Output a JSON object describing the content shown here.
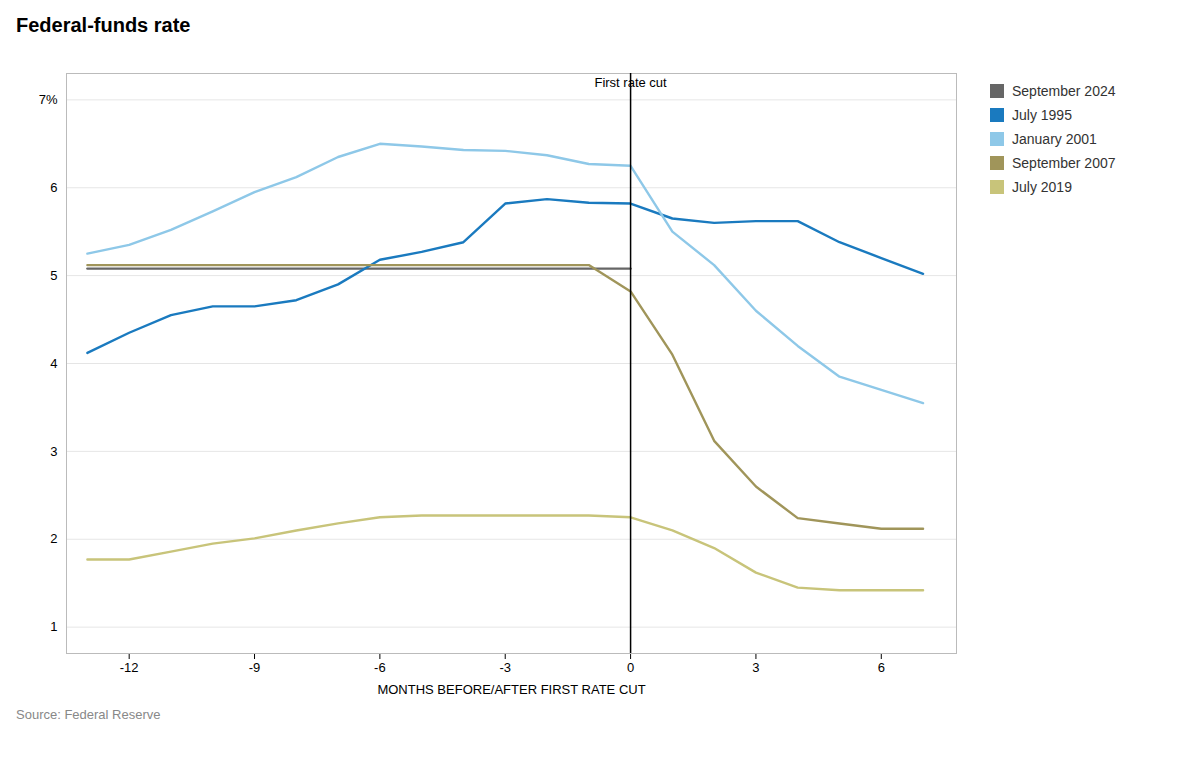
{
  "chart_data": {
    "type": "line",
    "title": "Federal-funds rate",
    "xlabel": "MONTHS BEFORE/AFTER FIRST RATE CUT",
    "caption": "Source: Federal Reserve",
    "annotations": [
      {
        "text": "First rate cut",
        "x": 0,
        "y": 7.15
      }
    ],
    "xlim": [
      -13.5,
      7.8
    ],
    "ylim": [
      0.7,
      7.3
    ],
    "xticks": [
      -12,
      -9,
      -6,
      -3,
      0,
      3,
      6
    ],
    "yticks": [
      1,
      2,
      3,
      4,
      5,
      6,
      {
        "value": 7,
        "label": "7%"
      }
    ],
    "grid": true,
    "legend": "right",
    "series": [
      {
        "name": "September 2024",
        "color": "#666666",
        "x": [
          -13,
          -12,
          -11,
          -10,
          -9,
          -8,
          -7,
          -6,
          -5,
          -4,
          -3,
          -2,
          -1,
          0
        ],
        "values": [
          5.08,
          5.08,
          5.08,
          5.08,
          5.08,
          5.08,
          5.08,
          5.08,
          5.08,
          5.08,
          5.08,
          5.08,
          5.08,
          5.08
        ]
      },
      {
        "name": "July 1995",
        "color": "#1a7abf",
        "x": [
          -13,
          -12,
          -11,
          -10,
          -9,
          -8,
          -7,
          -6,
          -5,
          -4,
          -3,
          -2,
          -1,
          0,
          1,
          2,
          3,
          4,
          5,
          6,
          7
        ],
        "values": [
          4.12,
          4.35,
          4.55,
          4.65,
          4.65,
          4.72,
          4.9,
          5.18,
          5.27,
          5.38,
          5.82,
          5.87,
          5.83,
          5.82,
          5.65,
          5.6,
          5.62,
          5.62,
          5.38,
          5.2,
          5.02
        ]
      },
      {
        "name": "January 2001",
        "color": "#8ec8e8",
        "x": [
          -13,
          -12,
          -11,
          -10,
          -9,
          -8,
          -7,
          -6,
          -5,
          -4,
          -3,
          -2,
          -1,
          0,
          1,
          2,
          3,
          4,
          5,
          6,
          7
        ],
        "values": [
          5.25,
          5.35,
          5.52,
          5.73,
          5.95,
          6.12,
          6.35,
          6.5,
          6.47,
          6.43,
          6.42,
          6.37,
          6.27,
          6.25,
          5.5,
          5.12,
          4.6,
          4.2,
          3.85,
          3.7,
          3.55
        ]
      },
      {
        "name": "September 2007",
        "color": "#a0955a",
        "x": [
          -13,
          -12,
          -11,
          -10,
          -9,
          -8,
          -7,
          -6,
          -5,
          -4,
          -3,
          -2,
          -1,
          0,
          1,
          2,
          3,
          4,
          5,
          6,
          7
        ],
        "values": [
          5.12,
          5.12,
          5.12,
          5.12,
          5.12,
          5.12,
          5.12,
          5.12,
          5.12,
          5.12,
          5.12,
          5.12,
          5.12,
          4.82,
          4.1,
          3.12,
          2.6,
          2.24,
          2.18,
          2.12,
          2.12
        ]
      },
      {
        "name": "July 2019",
        "color": "#c8c47a",
        "x": [
          -13,
          -12,
          -11,
          -10,
          -9,
          -8,
          -7,
          -6,
          -5,
          -4,
          -3,
          -2,
          -1,
          0,
          1,
          2,
          3,
          4,
          5,
          6,
          7
        ],
        "values": [
          1.77,
          1.77,
          1.86,
          1.95,
          2.01,
          2.1,
          2.18,
          2.25,
          2.27,
          2.27,
          2.27,
          2.27,
          2.27,
          2.25,
          2.1,
          1.9,
          1.62,
          1.45,
          1.42,
          1.42,
          1.42
        ]
      }
    ]
  }
}
